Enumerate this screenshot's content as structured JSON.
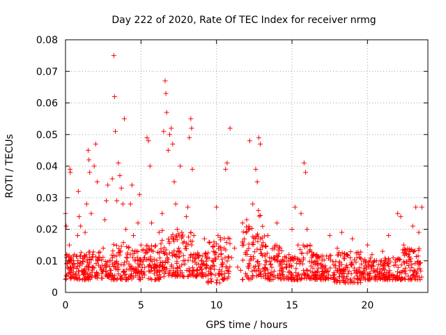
{
  "chart_data": {
    "type": "scatter",
    "title": "Day 222 of 2020, Rate Of TEC Index for receiver nrmg",
    "xlabel": "GPS time / hours",
    "ylabel": "ROTI / TECUs",
    "xlim": [
      0,
      24
    ],
    "ylim": [
      0,
      0.08
    ],
    "x_ticks": [
      0,
      5,
      10,
      15,
      20
    ],
    "x_tick_labels": [
      "0",
      "5",
      "10",
      "15",
      "20"
    ],
    "y_ticks": [
      0,
      0.01,
      0.02,
      0.03,
      0.04,
      0.05,
      0.06,
      0.07,
      0.08
    ],
    "y_tick_labels": [
      "0",
      "0.01",
      "0.02",
      "0.03",
      "0.04",
      "0.05",
      "0.06",
      "0.07",
      "0.08"
    ],
    "grid": true,
    "marker": "plus",
    "color": "#ff0000",
    "series": [
      {
        "points": [
          [
            0.0,
            0.025
          ],
          [
            0.05,
            0.021
          ],
          [
            0.1,
            0.012
          ],
          [
            0.15,
            0.008
          ],
          [
            0.2,
            0.006
          ],
          [
            0.25,
            0.015
          ],
          [
            0.3,
            0.039
          ],
          [
            0.32,
            0.038
          ],
          [
            0.35,
            0.01
          ],
          [
            0.4,
            0.007
          ],
          [
            0.45,
            0.005
          ],
          [
            0.5,
            0.009
          ],
          [
            0.6,
            0.012
          ],
          [
            0.7,
            0.006
          ],
          [
            0.8,
            0.018
          ],
          [
            0.85,
            0.032
          ],
          [
            0.9,
            0.024
          ],
          [
            1.0,
            0.021
          ],
          [
            1.1,
            0.009
          ],
          [
            1.2,
            0.007
          ],
          [
            1.3,
            0.019
          ],
          [
            1.4,
            0.028
          ],
          [
            1.5,
            0.045
          ],
          [
            1.55,
            0.042
          ],
          [
            1.6,
            0.038
          ],
          [
            1.7,
            0.025
          ],
          [
            1.8,
            0.012
          ],
          [
            1.9,
            0.04
          ],
          [
            2.0,
            0.047
          ],
          [
            2.1,
            0.035
          ],
          [
            2.2,
            0.011
          ],
          [
            2.3,
            0.008
          ],
          [
            2.4,
            0.006
          ],
          [
            2.5,
            0.014
          ],
          [
            2.6,
            0.023
          ],
          [
            2.7,
            0.029
          ],
          [
            2.8,
            0.034
          ],
          [
            2.9,
            0.01
          ],
          [
            3.0,
            0.007
          ],
          [
            3.1,
            0.036
          ],
          [
            3.2,
            0.075
          ],
          [
            3.25,
            0.062
          ],
          [
            3.3,
            0.051
          ],
          [
            3.4,
            0.029
          ],
          [
            3.5,
            0.041
          ],
          [
            3.6,
            0.037
          ],
          [
            3.7,
            0.033
          ],
          [
            3.8,
            0.028
          ],
          [
            3.9,
            0.055
          ],
          [
            4.0,
            0.02
          ],
          [
            4.1,
            0.012
          ],
          [
            4.2,
            0.009
          ],
          [
            4.3,
            0.028
          ],
          [
            4.4,
            0.034
          ],
          [
            4.5,
            0.018
          ],
          [
            4.6,
            0.01
          ],
          [
            4.7,
            0.007
          ],
          [
            4.8,
            0.022
          ],
          [
            4.9,
            0.031
          ],
          [
            5.0,
            0.015
          ],
          [
            5.2,
            0.011
          ],
          [
            5.4,
            0.049
          ],
          [
            5.5,
            0.048
          ],
          [
            5.6,
            0.04
          ],
          [
            5.7,
            0.022
          ],
          [
            5.8,
            0.013
          ],
          [
            5.9,
            0.009
          ],
          [
            6.0,
            0.008
          ],
          [
            6.2,
            0.019
          ],
          [
            6.4,
            0.025
          ],
          [
            6.5,
            0.051
          ],
          [
            6.6,
            0.067
          ],
          [
            6.65,
            0.063
          ],
          [
            6.7,
            0.057
          ],
          [
            6.8,
            0.045
          ],
          [
            6.9,
            0.05
          ],
          [
            7.0,
            0.052
          ],
          [
            7.1,
            0.047
          ],
          [
            7.2,
            0.035
          ],
          [
            7.3,
            0.028
          ],
          [
            7.4,
            0.02
          ],
          [
            7.5,
            0.014
          ],
          [
            7.6,
            0.04
          ],
          [
            7.7,
            0.019
          ],
          [
            7.8,
            0.01
          ],
          [
            7.9,
            0.009
          ],
          [
            8.0,
            0.024
          ],
          [
            8.1,
            0.027
          ],
          [
            8.2,
            0.049
          ],
          [
            8.3,
            0.055
          ],
          [
            8.35,
            0.052
          ],
          [
            8.4,
            0.039
          ],
          [
            8.5,
            0.018
          ],
          [
            8.6,
            0.012
          ],
          [
            8.8,
            0.009
          ],
          [
            9.0,
            0.01
          ],
          [
            9.2,
            0.017
          ],
          [
            9.4,
            0.011
          ],
          [
            9.6,
            0.006
          ],
          [
            9.8,
            0.013
          ],
          [
            10.0,
            0.027
          ],
          [
            10.1,
            0.018
          ],
          [
            10.3,
            0.012
          ],
          [
            10.5,
            0.014
          ],
          [
            10.6,
            0.039
          ],
          [
            10.7,
            0.041
          ],
          [
            10.9,
            0.052
          ],
          [
            11.0,
            0.011
          ],
          [
            11.2,
            0.014
          ],
          [
            11.4,
            0.008
          ],
          [
            11.6,
            0.007
          ],
          [
            11.8,
            0.015
          ],
          [
            12.0,
            0.023
          ],
          [
            12.2,
            0.048
          ],
          [
            12.4,
            0.028
          ],
          [
            12.6,
            0.039
          ],
          [
            12.7,
            0.035
          ],
          [
            12.8,
            0.049
          ],
          [
            12.9,
            0.047
          ],
          [
            13.0,
            0.015
          ],
          [
            13.2,
            0.012
          ],
          [
            13.4,
            0.018
          ],
          [
            13.6,
            0.009
          ],
          [
            13.8,
            0.011
          ],
          [
            14.0,
            0.022
          ],
          [
            14.2,
            0.014
          ],
          [
            14.4,
            0.01
          ],
          [
            14.6,
            0.008
          ],
          [
            14.8,
            0.012
          ],
          [
            15.0,
            0.02
          ],
          [
            15.2,
            0.027
          ],
          [
            15.4,
            0.015
          ],
          [
            15.6,
            0.025
          ],
          [
            15.8,
            0.041
          ],
          [
            15.9,
            0.038
          ],
          [
            16.0,
            0.02
          ],
          [
            16.2,
            0.015
          ],
          [
            16.4,
            0.012
          ],
          [
            16.6,
            0.009
          ],
          [
            16.8,
            0.011
          ],
          [
            17.0,
            0.008
          ],
          [
            17.5,
            0.018
          ],
          [
            18.0,
            0.014
          ],
          [
            18.3,
            0.019
          ],
          [
            18.6,
            0.012
          ],
          [
            19.0,
            0.017
          ],
          [
            19.3,
            0.011
          ],
          [
            19.6,
            0.009
          ],
          [
            20.0,
            0.015
          ],
          [
            20.3,
            0.012
          ],
          [
            20.6,
            0.01
          ],
          [
            21.0,
            0.013
          ],
          [
            21.4,
            0.018
          ],
          [
            21.7,
            0.011
          ],
          [
            22.0,
            0.025
          ],
          [
            22.2,
            0.024
          ],
          [
            22.4,
            0.015
          ],
          [
            22.7,
            0.012
          ],
          [
            23.0,
            0.021
          ],
          [
            23.2,
            0.027
          ],
          [
            23.4,
            0.019
          ],
          [
            23.6,
            0.027
          ]
        ]
      }
    ],
    "dense_bands": [
      [
        0.0,
        0.9,
        0.004,
        0.012
      ],
      [
        0.9,
        2.6,
        0.004,
        0.013
      ],
      [
        2.6,
        3.0,
        0.005,
        0.01
      ],
      [
        3.0,
        4.2,
        0.004,
        0.016
      ],
      [
        4.2,
        5.1,
        0.004,
        0.014
      ],
      [
        5.1,
        6.3,
        0.004,
        0.015
      ],
      [
        6.3,
        7.2,
        0.005,
        0.02
      ],
      [
        7.2,
        8.4,
        0.005,
        0.019
      ],
      [
        8.4,
        9.4,
        0.005,
        0.013
      ],
      [
        9.4,
        10.2,
        0.003,
        0.016
      ],
      [
        10.2,
        10.9,
        0.004,
        0.018
      ],
      [
        11.7,
        12.5,
        0.004,
        0.022
      ],
      [
        12.5,
        13.2,
        0.005,
        0.026
      ],
      [
        13.2,
        14.5,
        0.004,
        0.015
      ],
      [
        14.5,
        15.3,
        0.004,
        0.012
      ],
      [
        15.3,
        16.6,
        0.004,
        0.015
      ],
      [
        16.6,
        17.8,
        0.004,
        0.012
      ],
      [
        17.8,
        19.7,
        0.003,
        0.013
      ],
      [
        19.7,
        21.2,
        0.004,
        0.011
      ],
      [
        21.2,
        22.3,
        0.004,
        0.011
      ],
      [
        22.3,
        23.6,
        0.004,
        0.014
      ]
    ]
  }
}
